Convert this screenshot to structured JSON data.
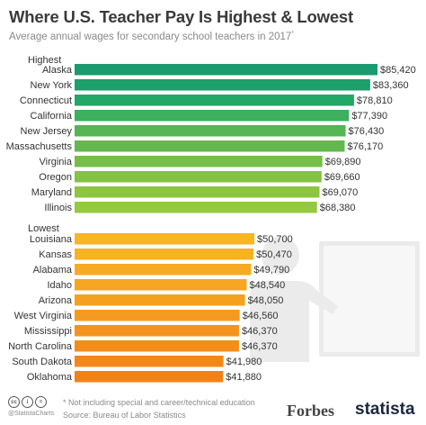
{
  "header": {
    "title": "Where U.S. Teacher Pay Is Highest & Lowest",
    "subtitle": "Average annual wages for secondary school teachers in 2017",
    "subtitle_mark": "*"
  },
  "colors": {
    "highest_gradient": [
      "#1a9a6e",
      "#1c9f6a",
      "#21a766",
      "#3daf5d",
      "#55b552",
      "#63b84f",
      "#76be48",
      "#83c243",
      "#8dc541",
      "#95c93f"
    ],
    "lowest_gradient": [
      "#f9b525",
      "#f8b024",
      "#f8aa23",
      "#f7a522",
      "#f6a020",
      "#f59a1f",
      "#f4931d",
      "#f38d1b",
      "#f2881a",
      "#f18218"
    ]
  },
  "chart_data": {
    "type": "bar",
    "orientation": "horizontal",
    "title": "Where U.S. Teacher Pay Is Highest & Lowest",
    "subtitle": "Average annual wages for secondary school teachers in 2017*",
    "groups": [
      {
        "name": "Highest",
        "categories": [
          "Alaska",
          "New York",
          "Connecticut",
          "California",
          "New Jersey",
          "Massachusetts",
          "Virginia",
          "Oregon",
          "Maryland",
          "Illinois"
        ],
        "values": [
          85420,
          83360,
          78810,
          77390,
          76430,
          76170,
          69890,
          69660,
          69070,
          68380
        ],
        "labels": [
          "$85,420",
          "$83,360",
          "$78,810",
          "$77,390",
          "$76,430",
          "$76,170",
          "$69,890",
          "$69,660",
          "$69,070",
          "$68,380"
        ]
      },
      {
        "name": "Lowest",
        "categories": [
          "Louisiana",
          "Kansas",
          "Alabama",
          "Idaho",
          "Arizona",
          "West Virginia",
          "Mississippi",
          "North Carolina",
          "South Dakota",
          "Oklahoma"
        ],
        "values": [
          50700,
          50470,
          49790,
          48540,
          48050,
          46560,
          46370,
          46370,
          41980,
          41880
        ],
        "labels": [
          "$50,700",
          "$50,470",
          "$49,790",
          "$48,540",
          "$48,050",
          "$46,560",
          "$46,370",
          "$46,370",
          "$41,980",
          "$41,880"
        ]
      }
    ],
    "xlim": [
      0,
      85420
    ],
    "grid": false,
    "legend": "none"
  },
  "footer": {
    "note": "* Not including special and career/technical education",
    "source": "Source: Bureau of Labor Statistics",
    "handle": "@StatistaCharts",
    "cc_icons": [
      "cc",
      "i",
      "="
    ]
  },
  "logos": {
    "forbes": "Forbes",
    "statista": "statista"
  }
}
